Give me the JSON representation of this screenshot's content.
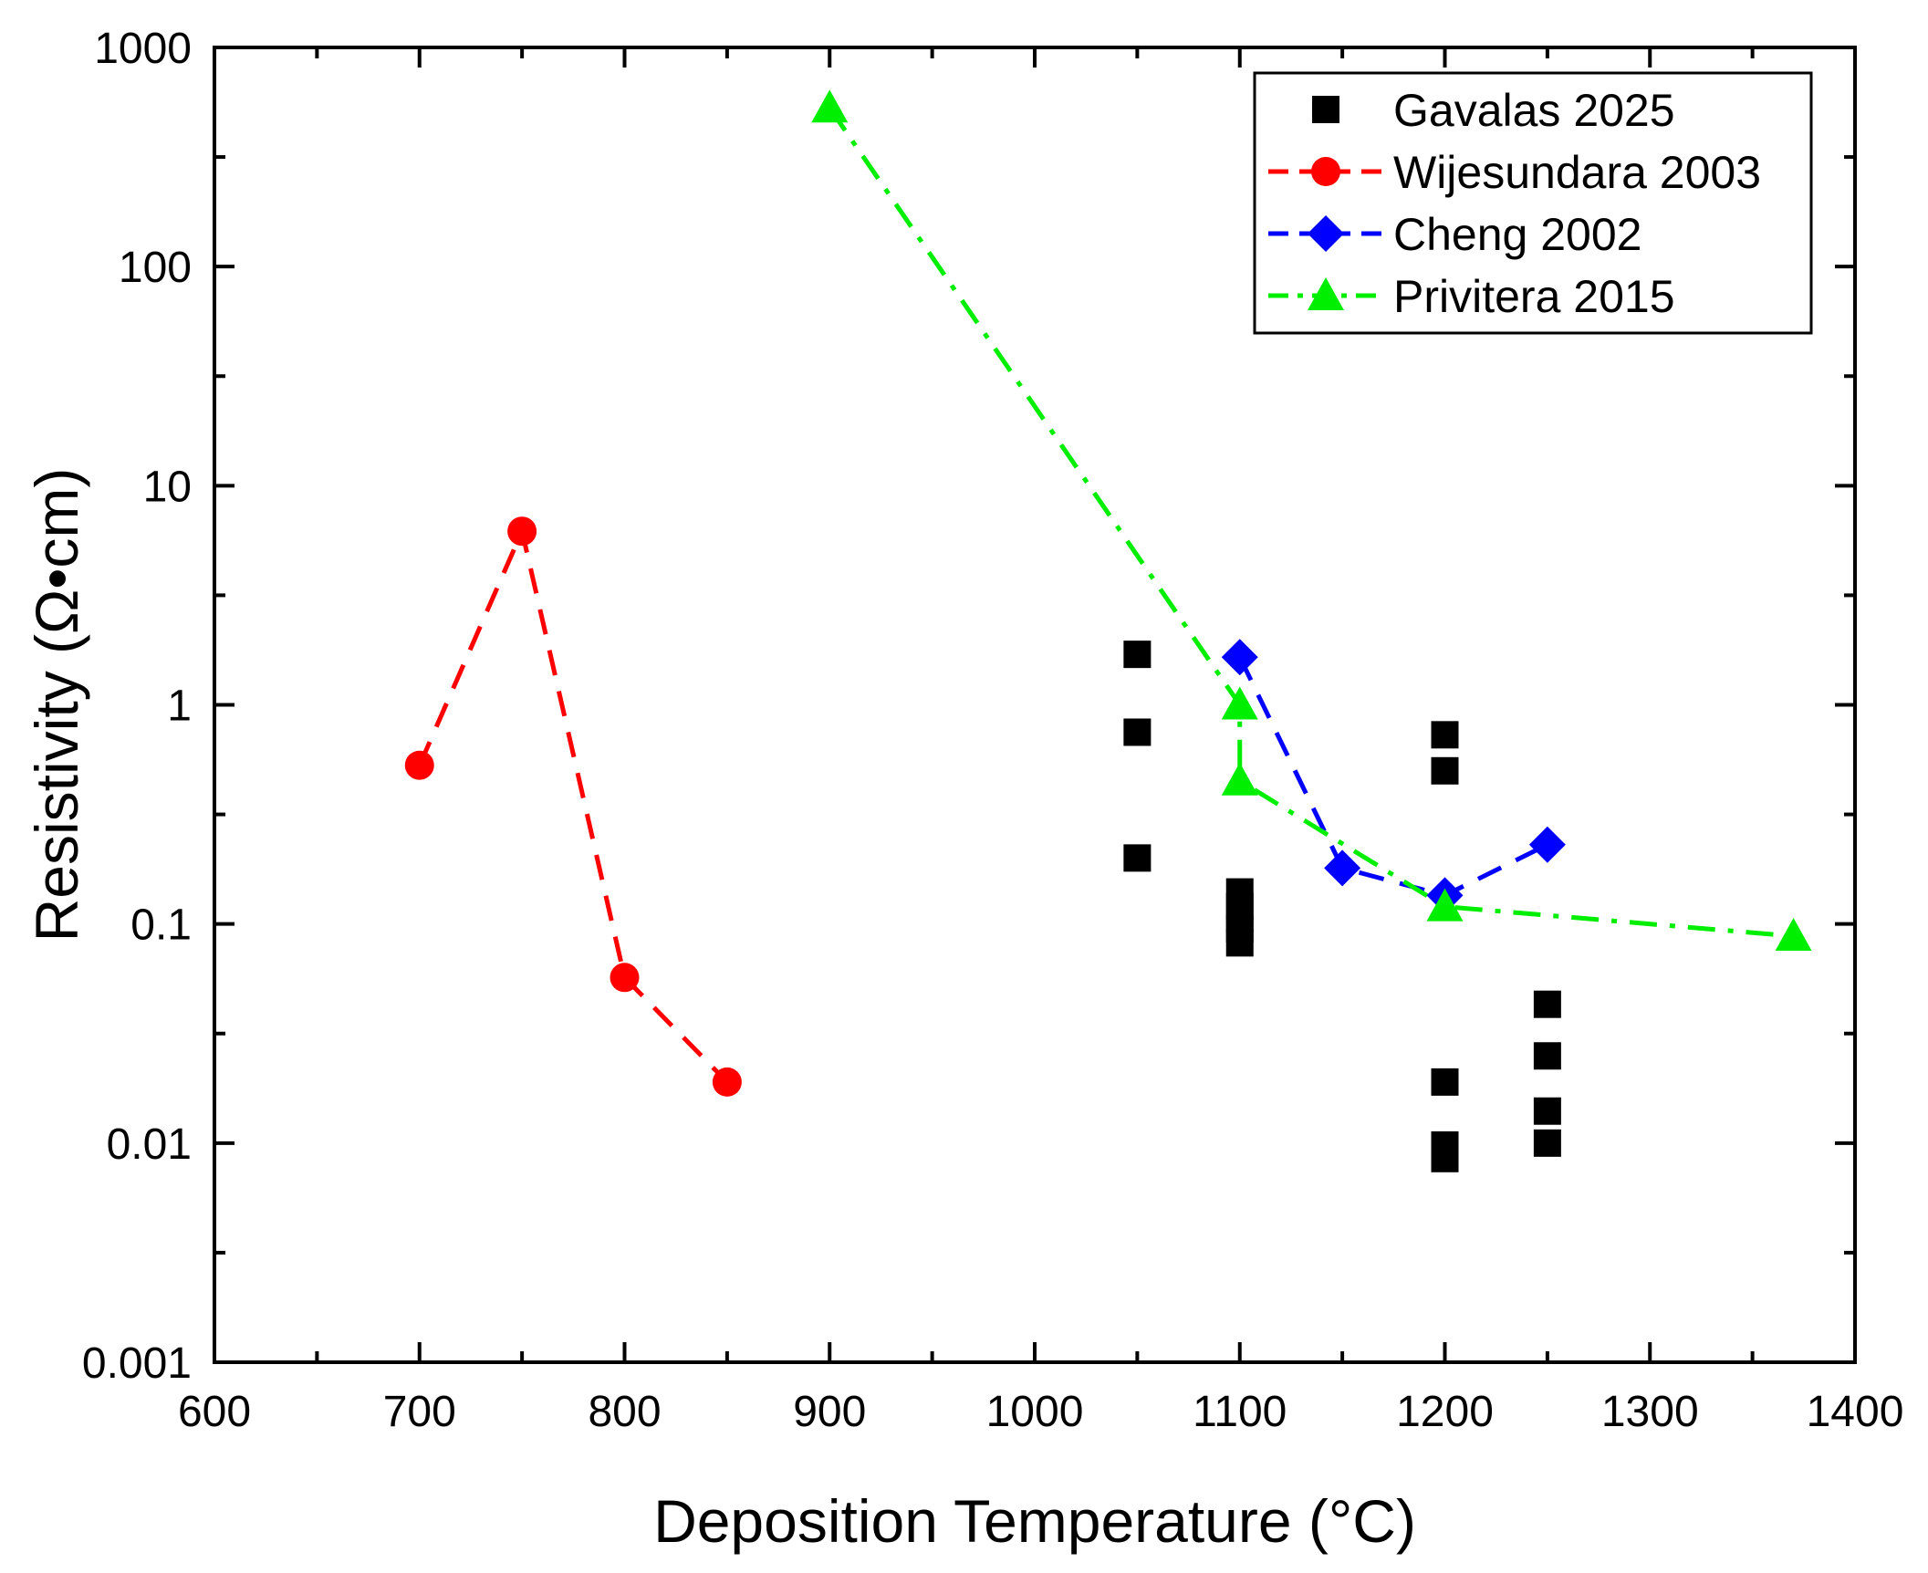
{
  "chart_data": {
    "type": "scatter",
    "title": "",
    "xlabel": "Deposition Temperature (°C)",
    "ylabel": "Resistivity (Ω•cm)",
    "xlim": [
      600,
      1400
    ],
    "ylim": [
      0.001,
      1000
    ],
    "yscale": "log",
    "x_ticks": [
      600,
      700,
      800,
      900,
      1000,
      1100,
      1200,
      1300,
      1400
    ],
    "x_tick_labels": [
      "600",
      "700",
      "800",
      "900",
      "1000",
      "1100",
      "1200",
      "1300",
      "1400"
    ],
    "y_ticks": [
      0.001,
      0.01,
      0.1,
      1,
      10,
      100,
      1000
    ],
    "y_tick_labels": [
      "0.001",
      "0.01",
      "0.1",
      "1",
      "10",
      "100",
      "1000"
    ],
    "legend_position": "top-right",
    "series": [
      {
        "name": "Gavalas 2025",
        "color": "#000000",
        "marker": "square",
        "line": "none",
        "x": [
          1050,
          1050,
          1050,
          1100,
          1100,
          1100,
          1100,
          1100,
          1200,
          1200,
          1200,
          1200,
          1200,
          1250,
          1250,
          1250,
          1250
        ],
        "y": [
          1.7,
          0.75,
          0.2,
          0.14,
          0.12,
          0.105,
          0.095,
          0.082,
          0.73,
          0.5,
          0.019,
          0.0098,
          0.0085,
          0.043,
          0.025,
          0.014,
          0.01
        ]
      },
      {
        "name": "Wijesundara 2003",
        "color": "#ff0000",
        "marker": "circle",
        "line": "dashed",
        "x": [
          700,
          750,
          800,
          850
        ],
        "y": [
          0.53,
          6.2,
          0.057,
          0.019
        ]
      },
      {
        "name": "Cheng 2002",
        "color": "#0000ff",
        "marker": "diamond",
        "line": "dashed",
        "x": [
          1100,
          1150,
          1200,
          1250
        ],
        "y": [
          1.65,
          0.18,
          0.135,
          0.23
        ]
      },
      {
        "name": "Privitera 2015",
        "color": "#00ee00",
        "marker": "triangle",
        "line": "dash-dot",
        "x": [
          900,
          1100,
          1100,
          1200,
          1370
        ],
        "y": [
          530,
          1.0,
          0.45,
          0.12,
          0.088
        ]
      }
    ]
  }
}
